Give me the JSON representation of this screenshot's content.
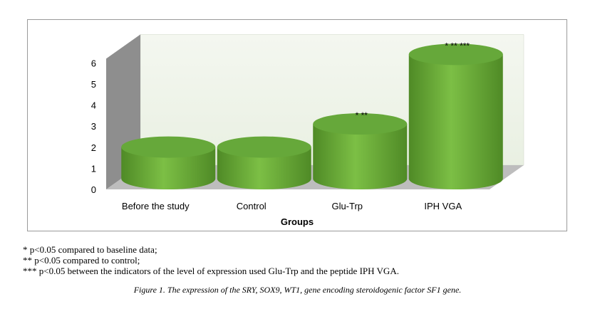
{
  "chart_data": {
    "type": "bar",
    "style": "3d-cylinder",
    "categories": [
      "Before the study",
      "Control",
      "Glu-Trp",
      "IPH VGA"
    ],
    "values": [
      1.5,
      1.5,
      2.6,
      5.9
    ],
    "annotations": [
      "",
      "",
      "* **",
      "* ** ***"
    ],
    "xlabel": "Groups",
    "ylabel": "",
    "ylim": [
      0,
      6
    ],
    "yticks": [
      0,
      1,
      2,
      3,
      4,
      5,
      6
    ],
    "grid": false,
    "legend": "none",
    "colors": {
      "bar": "#7cbf45",
      "bar_dark": "#4f8a26",
      "top": "#66a83a",
      "back_wall": "#e9f0e2",
      "side_wall": "#8e8e8e",
      "floor": "#bdbdbd"
    }
  },
  "notes": [
    "* p<0.05 compared to baseline data;",
    "** p<0.05 compared to control;",
    "*** p<0.05 between the indicators of the level of expression used Glu-Trp and the peptide IPH VGA."
  ],
  "caption": "Figure 1. The expression of the SRY, SOX9, WT1, gene encoding steroidogenic factor SF1 gene."
}
